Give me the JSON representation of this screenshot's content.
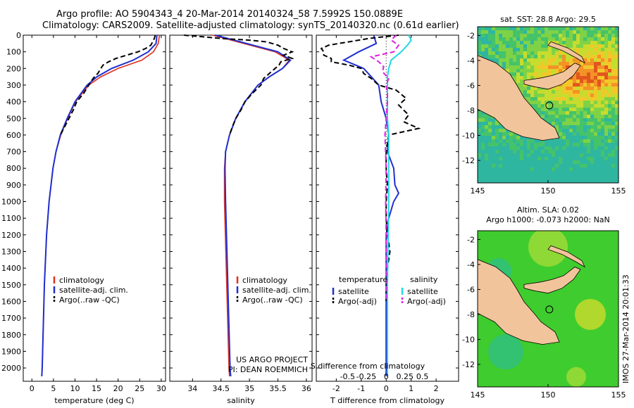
{
  "header": {
    "line1": "Argo profile: AO 5904343_4 20-Mar-2014 20140324_58 7.5992S 150.0889E",
    "line2": "Climatology: CARS2009. Satellite-adjusted climatology: synTS_20140320.nc (0.61d earlier)"
  },
  "side_text": "IMOS 27-Mar-2014 20:01:33",
  "colors": {
    "climatology": "#e0301e",
    "satellite": "#1f2fd0",
    "argo": "#000000",
    "salinity_sat": "#22d8e8",
    "salinity_argo": "#e020e0",
    "land": "#f2c49c",
    "sla_bg": "#3fcc2e"
  },
  "chart_data": [
    {
      "type": "line",
      "name": "temperature",
      "xlabel": "temperature (deg C)",
      "xlim": [
        -2,
        31
      ],
      "ylim": [
        0,
        2080
      ],
      "xticks": [
        0,
        5,
        10,
        15,
        20,
        25,
        30
      ],
      "yticks": [
        0,
        100,
        200,
        300,
        400,
        500,
        600,
        700,
        800,
        900,
        1000,
        1100,
        1200,
        1300,
        1400,
        1500,
        1600,
        1700,
        1800,
        1900,
        2000
      ],
      "legend": [
        "climatology",
        "satellite-adj. clim.",
        "Argo(..raw -QC)"
      ],
      "series": [
        {
          "name": "climatology",
          "depth": [
            0,
            50,
            100,
            150,
            200,
            250,
            300,
            400,
            500,
            600,
            700,
            800,
            1000,
            1200,
            1500,
            2000,
            2050
          ],
          "values": [
            29.6,
            29.3,
            28.2,
            25.5,
            20,
            16,
            13.2,
            10.1,
            8.3,
            6.7,
            5.6,
            4.9,
            4.0,
            3.4,
            2.9,
            2.4,
            2.3
          ]
        },
        {
          "name": "satellite-adj. clim.",
          "depth": [
            0,
            50,
            100,
            150,
            200,
            250,
            300,
            400,
            500,
            600,
            700,
            800,
            1000,
            1200,
            1500,
            2000,
            2050
          ],
          "values": [
            29.0,
            28.8,
            27.0,
            23.5,
            18.5,
            15.1,
            12.8,
            10.0,
            8.2,
            6.6,
            5.6,
            4.9,
            4.0,
            3.4,
            2.9,
            2.4,
            2.3
          ]
        },
        {
          "name": "Argo(..raw -QC)",
          "depth": [
            0,
            20,
            40,
            60,
            80,
            100,
            120,
            140,
            160,
            180,
            200,
            230,
            260,
            300,
            350,
            400,
            450,
            500,
            550,
            600
          ],
          "values": [
            28.6,
            28.4,
            28.0,
            27.6,
            26.4,
            24.6,
            22.0,
            19.5,
            17.8,
            16.5,
            16.0,
            15.3,
            14.2,
            13.2,
            12.0,
            10.4,
            9.6,
            8.6,
            7.6,
            6.6
          ]
        }
      ]
    },
    {
      "type": "line",
      "name": "salinity",
      "xlabel": "salinity",
      "xlim": [
        33.6,
        36.1
      ],
      "ylim": [
        0,
        2080
      ],
      "xticks": [
        34,
        34.5,
        35,
        35.5,
        36
      ],
      "legend": [
        "climatology",
        "satellite-adj. clim.",
        "Argo(..raw -QC)"
      ],
      "annotation": [
        "US ARGO PROJECT",
        "PI: DEAN ROEMMICH"
      ],
      "series": [
        {
          "name": "climatology",
          "depth": [
            0,
            50,
            100,
            150,
            200,
            250,
            300,
            400,
            500,
            600,
            700,
            800,
            1000,
            1500,
            2000,
            2050
          ],
          "values": [
            34.35,
            34.9,
            35.45,
            35.7,
            35.58,
            35.35,
            35.15,
            34.92,
            34.76,
            34.65,
            34.58,
            34.56,
            34.56,
            34.6,
            34.64,
            34.65
          ]
        },
        {
          "name": "satellite-adj. clim.",
          "depth": [
            0,
            50,
            100,
            150,
            200,
            250,
            300,
            400,
            500,
            600,
            700,
            800,
            1000,
            1500,
            2000,
            2050
          ],
          "values": [
            34.4,
            34.95,
            35.5,
            35.72,
            35.58,
            35.35,
            35.15,
            34.92,
            34.76,
            34.65,
            34.58,
            34.57,
            34.58,
            34.62,
            34.66,
            34.67
          ]
        },
        {
          "name": "Argo(..raw -QC)",
          "depth": [
            0,
            10,
            20,
            30,
            40,
            60,
            80,
            100,
            120,
            140,
            160,
            180,
            200,
            230,
            260,
            300,
            350,
            400,
            450,
            500,
            550,
            600
          ],
          "values": [
            33.85,
            34.2,
            34.5,
            35.0,
            35.3,
            35.5,
            35.6,
            35.75,
            35.6,
            35.75,
            35.55,
            35.52,
            35.45,
            35.35,
            35.25,
            35.2,
            35.05,
            34.92,
            34.85,
            34.76,
            34.7,
            34.65
          ]
        }
      ]
    },
    {
      "type": "line",
      "name": "differences",
      "xlabel": "T difference from climatology",
      "xlim": [
        -2.8,
        2.9
      ],
      "xticks": [
        -2,
        -1,
        0,
        1,
        2
      ],
      "top_axis_label": "S difference from climatology",
      "top_ticks": [
        "-0.5",
        "-0.25",
        "0",
        "0.25",
        "0.5"
      ],
      "ylim": [
        0,
        2080
      ],
      "legend_titles": [
        "temperature",
        "salinity"
      ],
      "legend": [
        "satellite",
        "Argo(-adj)",
        "satellite",
        "Argo(-adj)"
      ],
      "series": [
        {
          "name": "satellite",
          "quantity": "temperature",
          "depth": [
            0,
            50,
            100,
            150,
            200,
            250,
            300,
            400,
            500,
            600,
            700,
            800,
            900,
            950,
            1000,
            1100,
            1200,
            1500,
            2000,
            2050
          ],
          "values": [
            -0.5,
            -0.4,
            -1.1,
            -1.7,
            -0.9,
            -0.6,
            -0.3,
            -0.2,
            0,
            0.1,
            0.05,
            0.3,
            0.35,
            0.5,
            0.3,
            0.1,
            0,
            0,
            0,
            0
          ]
        },
        {
          "name": "Argo(-adj)",
          "quantity": "temperature",
          "depth": [
            0,
            20,
            40,
            60,
            80,
            100,
            120,
            140,
            160,
            180,
            200,
            230,
            260,
            300,
            330,
            380,
            420,
            480,
            520,
            560,
            600,
            650,
            700,
            750,
            800,
            900,
            1000,
            1100,
            1200,
            1250,
            1300,
            1350,
            1400,
            1450,
            1500,
            1600
          ],
          "values": [
            0.5,
            -0.7,
            -1.5,
            -2.3,
            -2.6,
            -2.5,
            -2.5,
            -2.2,
            -2.2,
            -1.5,
            -1.0,
            -0.9,
            -0.6,
            -0.3,
            0.4,
            0.8,
            0.5,
            0.9,
            0.7,
            1.3,
            0.1,
            0.05,
            0.0,
            0.0,
            0.0,
            0.05,
            0.0,
            0.0,
            0.05,
            0.1,
            0.15,
            0.1,
            0.05,
            0.05,
            0.0,
            0.0
          ]
        },
        {
          "name": "satellite",
          "quantity": "salinity",
          "depth": [
            0,
            30,
            60,
            100,
            150,
            200,
            250,
            300,
            400,
            500,
            600,
            800,
            1000,
            1500,
            2000,
            2050
          ],
          "values": [
            0.9,
            1.0,
            0.85,
            0.6,
            0.2,
            0.1,
            0.05,
            0.05,
            0.05,
            0.05,
            0.1,
            0.1,
            0.1,
            0.05,
            0.05,
            0.05
          ]
        },
        {
          "name": "Argo(-adj)",
          "quantity": "salinity",
          "depth": [
            0,
            30,
            60,
            100,
            130,
            160,
            190,
            220,
            260,
            300,
            350,
            400,
            500,
            600,
            800,
            1000,
            1200,
            1500,
            1600
          ],
          "values": [
            0.4,
            0.2,
            0.5,
            0.3,
            -0.6,
            -0.3,
            -0.1,
            -0.15,
            0.1,
            0.0,
            0.05,
            0.05,
            0.0,
            -0.05,
            0.0,
            -0.02,
            0.0,
            0.0,
            0.0
          ]
        }
      ]
    }
  ],
  "maps": [
    {
      "title": "sat. SST: 28.8 Argo: 29.5",
      "xticks": [
        "145",
        "150",
        "155"
      ],
      "yticks": [
        "-2",
        "-4",
        "-6",
        "-8",
        "-10",
        "-12"
      ]
    },
    {
      "title_line1": "Altim. SLA: 0.02",
      "title_line2": "Argo h1000: -0.073 h2000: NaN",
      "xticks": [
        "145",
        "150",
        "155"
      ],
      "yticks": [
        "-2",
        "-4",
        "-6",
        "-8",
        "-10",
        "-12"
      ]
    }
  ]
}
